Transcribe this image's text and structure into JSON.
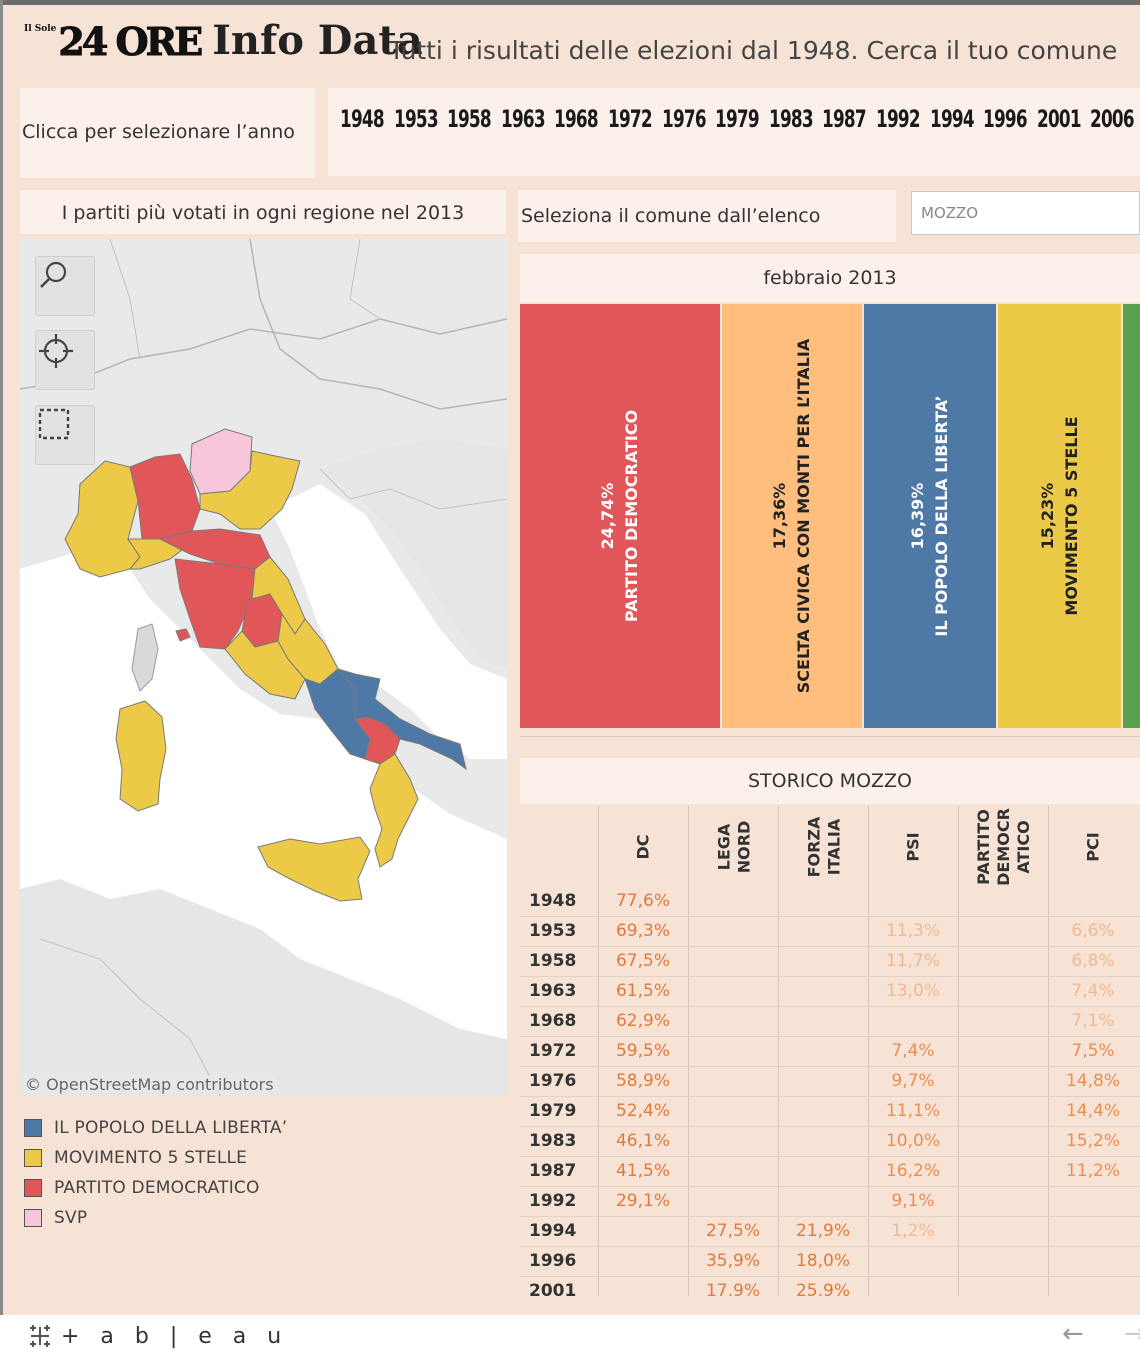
{
  "header": {
    "brand_small": "Il Sole",
    "brand_main": "24 ORE",
    "brand_product": "Info Data",
    "subtitle": "Tutti i risultati delle elezioni dal 1948. Cerca il tuo comune"
  },
  "year_selector": {
    "label": "Clicca per selezionare l’anno",
    "years": [
      "1948",
      "1953",
      "1958",
      "1963",
      "1968",
      "1972",
      "1976",
      "1979",
      "1983",
      "1987",
      "1992",
      "1994",
      "1996",
      "2001",
      "2006"
    ]
  },
  "map": {
    "title": "I partiti più votati in ogni regione nel 2013",
    "tools": [
      "search-icon",
      "crosshair-icon",
      "selection-icon"
    ],
    "attribution": "© OpenStreetMap contributors",
    "legend": [
      {
        "label": "IL POPOLO DELLA LIBERTA’",
        "color": "#4e79a7"
      },
      {
        "label": "MOVIMENTO 5 STELLE",
        "color": "#edc948"
      },
      {
        "label": "PARTITO DEMOCRATICO",
        "color": "#e15759"
      },
      {
        "label": "SVP",
        "color": "#f7c6da"
      }
    ]
  },
  "comune": {
    "label": "Seleziona il comune dall’elenco",
    "selected": "MOZZO"
  },
  "election": {
    "title": "febbraio 2013",
    "parties": [
      {
        "pct": "24,74%",
        "name": "PARTITO DEMOCRATICO",
        "value": 24.74,
        "color": "#e15759",
        "text_color": "#ffffff"
      },
      {
        "pct": "17,36%",
        "name": "SCELTA CIVICA CON MONTI PER L’ITALIA",
        "value": 17.36,
        "color": "#ffbe7d",
        "text_color": "#222222"
      },
      {
        "pct": "16,39%",
        "name": "IL POPOLO DELLA LIBERTA’",
        "value": 16.39,
        "color": "#4e79a7",
        "text_color": "#ffffff"
      },
      {
        "pct": "15,23%",
        "name": "MOVIMENTO 5 STELLE",
        "value": 15.23,
        "color": "#edc948",
        "text_color": "#222222"
      },
      {
        "pct": "",
        "name": "",
        "value": 3,
        "color": "#59a14f",
        "text_color": "#ffffff"
      }
    ]
  },
  "history": {
    "title": "STORICO MOZZO",
    "columns": [
      "DC",
      "LEGA\nNORD",
      "FORZA\nITALIA",
      "PSI",
      "PARTITO\nDEMOCR\nATICO",
      "PCI"
    ],
    "rows": [
      {
        "year": "1948",
        "cells": [
          "77,6%",
          "",
          "",
          "",
          "",
          ""
        ]
      },
      {
        "year": "1953",
        "cells": [
          "69,3%",
          "",
          "",
          "11,3%",
          "",
          "6,6%"
        ]
      },
      {
        "year": "1958",
        "cells": [
          "67,5%",
          "",
          "",
          "11,7%",
          "",
          "6,8%"
        ]
      },
      {
        "year": "1963",
        "cells": [
          "61,5%",
          "",
          "",
          "13,0%",
          "",
          "7,4%"
        ]
      },
      {
        "year": "1968",
        "cells": [
          "62,9%",
          "",
          "",
          "",
          "",
          "7,1%"
        ]
      },
      {
        "year": "1972",
        "cells": [
          "59,5%",
          "",
          "",
          "7,4%",
          "",
          "7,5%"
        ]
      },
      {
        "year": "1976",
        "cells": [
          "58,9%",
          "",
          "",
          "9,7%",
          "",
          "14,8%"
        ]
      },
      {
        "year": "1979",
        "cells": [
          "52,4%",
          "",
          "",
          "11,1%",
          "",
          "14,4%"
        ]
      },
      {
        "year": "1983",
        "cells": [
          "46,1%",
          "",
          "",
          "10,0%",
          "",
          "15,2%"
        ]
      },
      {
        "year": "1987",
        "cells": [
          "41,5%",
          "",
          "",
          "16,2%",
          "",
          "11,2%"
        ]
      },
      {
        "year": "1992",
        "cells": [
          "29,1%",
          "",
          "",
          "9,1%",
          "",
          ""
        ]
      },
      {
        "year": "1994",
        "cells": [
          "",
          "27,5%",
          "21,9%",
          "1,2%",
          "",
          ""
        ]
      },
      {
        "year": "1996",
        "cells": [
          "",
          "35,9%",
          "18,0%",
          "",
          "",
          ""
        ]
      },
      {
        "year": "2001",
        "cells": [
          "",
          "17,9%",
          "25,9%",
          "",
          "",
          ""
        ]
      }
    ]
  },
  "footer": {
    "logo": "+ a b | e a u",
    "back_icon": "arrow-left-icon"
  }
}
